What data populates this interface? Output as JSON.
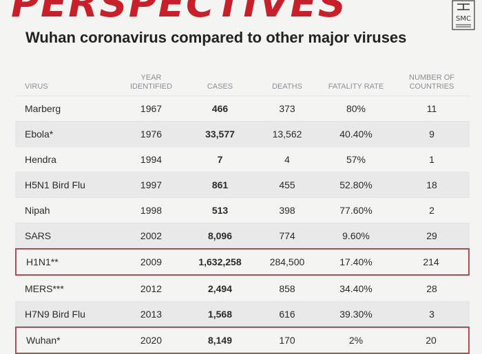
{
  "header": {
    "brand": "PERSPECTIVES",
    "subtitle": "Wuhan coronavirus compared to other major viruses",
    "logo_text": "SMC"
  },
  "table": {
    "columns": [
      "VIRUS",
      "YEAR IDENTIFIED",
      "CASES",
      "DEATHS",
      "FATALITY RATE",
      "NUMBER OF COUNTRIES"
    ],
    "rows": [
      {
        "virus": "Marberg",
        "year": "1967",
        "cases": "466",
        "deaths": "373",
        "rate": "80%",
        "countries": "11"
      },
      {
        "virus": "Ebola*",
        "year": "1976",
        "cases": "33,577",
        "deaths": "13,562",
        "rate": "40.40%",
        "countries": "9"
      },
      {
        "virus": "Hendra",
        "year": "1994",
        "cases": "7",
        "deaths": "4",
        "rate": "57%",
        "countries": "1"
      },
      {
        "virus": "H5N1 Bird Flu",
        "year": "1997",
        "cases": "861",
        "deaths": "455",
        "rate": "52.80%",
        "countries": "18"
      },
      {
        "virus": "Nipah",
        "year": "1998",
        "cases": "513",
        "deaths": "398",
        "rate": "77.60%",
        "countries": "2"
      },
      {
        "virus": "SARS",
        "year": "2002",
        "cases": "8,096",
        "deaths": "774",
        "rate": "9.60%",
        "countries": "29"
      },
      {
        "virus": "H1N1**",
        "year": "2009",
        "cases": "1,632,258",
        "deaths": "284,500",
        "rate": "17.40%",
        "countries": "214"
      },
      {
        "virus": "MERS***",
        "year": "2012",
        "cases": "2,494",
        "deaths": "858",
        "rate": "34.40%",
        "countries": "28"
      },
      {
        "virus": "H7N9 Bird Flu",
        "year": "2013",
        "cases": "1,568",
        "deaths": "616",
        "rate": "39.30%",
        "countries": "3"
      },
      {
        "virus": "Wuhan*",
        "year": "2020",
        "cases": "8,149",
        "deaths": "170",
        "rate": "2%",
        "countries": "20"
      }
    ]
  },
  "colors": {
    "brand_red": "#c8202a",
    "highlight_border": "#b24a52",
    "header_text": "#8b8f96"
  }
}
